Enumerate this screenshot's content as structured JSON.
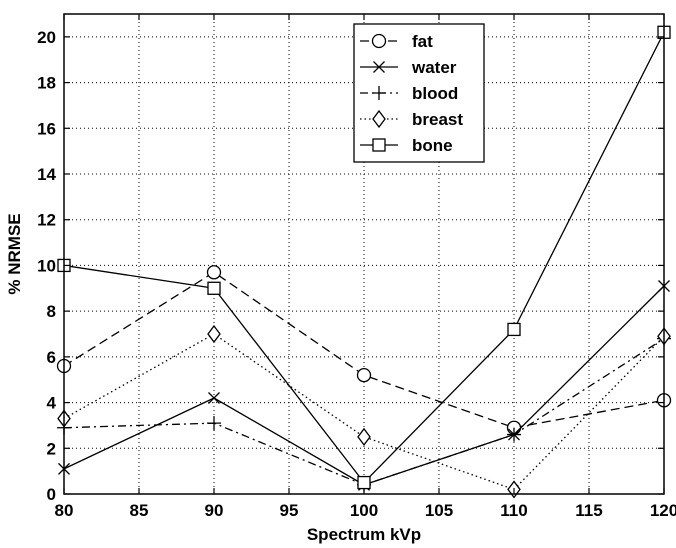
{
  "chart_data": {
    "type": "line",
    "xlabel": "Spectrum kVp",
    "ylabel": "% NRMSE",
    "xlim": [
      80,
      120
    ],
    "ylim": [
      0,
      21
    ],
    "x_ticks": [
      80,
      85,
      90,
      95,
      100,
      105,
      110,
      115,
      120
    ],
    "y_ticks": [
      0,
      2,
      4,
      6,
      8,
      10,
      12,
      14,
      16,
      18,
      20
    ],
    "grid": true,
    "legend_position": "top-center",
    "x": [
      80,
      90,
      100,
      110,
      120
    ],
    "series": [
      {
        "name": "fat",
        "values": [
          5.6,
          9.7,
          5.2,
          2.9,
          4.1
        ],
        "line_style": "dashed",
        "marker": "circle"
      },
      {
        "name": "water",
        "values": [
          1.1,
          4.2,
          0.4,
          2.6,
          9.1
        ],
        "line_style": "solid",
        "marker": "x"
      },
      {
        "name": "blood",
        "values": [
          2.9,
          3.1,
          0.4,
          2.6,
          6.8
        ],
        "line_style": "dash-dot",
        "marker": "plus"
      },
      {
        "name": "breast",
        "values": [
          3.3,
          7.0,
          2.5,
          0.2,
          6.9
        ],
        "line_style": "dotted",
        "marker": "diamond"
      },
      {
        "name": "bone",
        "values": [
          10.0,
          9.0,
          0.5,
          7.2,
          20.2
        ],
        "line_style": "solid",
        "marker": "square"
      }
    ]
  }
}
